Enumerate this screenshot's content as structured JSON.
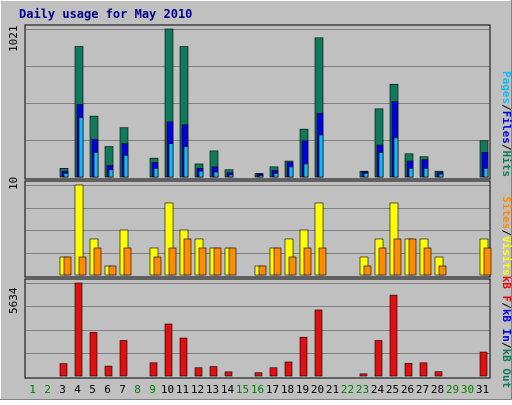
{
  "title": "Daily usage for May 2010",
  "colors": {
    "frame_bg": "#c0c0c0",
    "plot_bg": "#c0c0c0",
    "grid": "#808080",
    "title": "#00008b",
    "hits": "#117a5a",
    "files": "#0000e0",
    "pages": "#1ab8f0",
    "visits": "#ffff00",
    "sites": "#ff8c00",
    "kb_in": "#e01010",
    "weekday": "#000000",
    "weekend": "#008000"
  },
  "axes": {
    "top_max_label": "1021",
    "mid_max_label": "10",
    "bot_max_label": "5634"
  },
  "legend": {
    "top": [
      "Pages",
      "/",
      "Files",
      "/",
      "Hits"
    ],
    "mid": [
      "Sites",
      "/",
      "Visits"
    ],
    "bot": [
      "kB F",
      "/",
      "kB In",
      "/",
      "kB Out"
    ]
  },
  "chart_data": [
    {
      "type": "bar",
      "title": "Daily usage for May 2010",
      "panel": "top",
      "ylim": [
        0,
        1021
      ],
      "categories": [
        "1",
        "2",
        "3",
        "4",
        "5",
        "6",
        "7",
        "8",
        "9",
        "10",
        "11",
        "12",
        "13",
        "14",
        "15",
        "16",
        "17",
        "18",
        "19",
        "20",
        "21",
        "22",
        "23",
        "24",
        "25",
        "26",
        "27",
        "28",
        "29",
        "30",
        "31"
      ],
      "weekend_days": [
        "1",
        "2",
        "8",
        "9",
        "15",
        "16",
        "22",
        "23",
        "29",
        "30"
      ],
      "series": [
        {
          "name": "Hits",
          "values": [
            0,
            0,
            60,
            900,
            420,
            210,
            340,
            0,
            130,
            1021,
            900,
            90,
            180,
            50,
            0,
            25,
            70,
            110,
            330,
            960,
            0,
            0,
            40,
            470,
            640,
            160,
            140,
            40,
            0,
            0,
            250
          ]
        },
        {
          "name": "Files",
          "values": [
            0,
            0,
            40,
            500,
            260,
            80,
            230,
            0,
            100,
            380,
            360,
            60,
            70,
            30,
            0,
            20,
            45,
            100,
            250,
            440,
            0,
            0,
            35,
            220,
            520,
            110,
            120,
            30,
            0,
            0,
            170
          ]
        },
        {
          "name": "Pages",
          "values": [
            0,
            0,
            25,
            410,
            170,
            50,
            150,
            0,
            60,
            230,
            210,
            40,
            35,
            15,
            0,
            10,
            25,
            70,
            90,
            290,
            0,
            0,
            25,
            170,
            270,
            60,
            60,
            20,
            0,
            0,
            60
          ]
        }
      ]
    },
    {
      "type": "bar",
      "panel": "middle",
      "ylim": [
        0,
        10
      ],
      "categories": [
        "1",
        "2",
        "3",
        "4",
        "5",
        "6",
        "7",
        "8",
        "9",
        "10",
        "11",
        "12",
        "13",
        "14",
        "15",
        "16",
        "17",
        "18",
        "19",
        "20",
        "21",
        "22",
        "23",
        "24",
        "25",
        "26",
        "27",
        "28",
        "29",
        "30",
        "31"
      ],
      "series": [
        {
          "name": "Visits",
          "values": [
            0,
            0,
            2,
            10,
            4,
            1,
            5,
            0,
            3,
            8,
            5,
            4,
            3,
            3,
            0,
            1,
            3,
            4,
            5,
            8,
            0,
            0,
            2,
            4,
            8,
            4,
            4,
            2,
            0,
            0,
            4
          ]
        },
        {
          "name": "Sites",
          "values": [
            0,
            0,
            2,
            2,
            3,
            1,
            3,
            0,
            2,
            3,
            4,
            3,
            3,
            3,
            0,
            1,
            3,
            2,
            3,
            3,
            0,
            0,
            1,
            3,
            4,
            4,
            3,
            1,
            0,
            0,
            3
          ]
        }
      ]
    },
    {
      "type": "bar",
      "panel": "bottom",
      "ylim": [
        0,
        5634
      ],
      "categories": [
        "1",
        "2",
        "3",
        "4",
        "5",
        "6",
        "7",
        "8",
        "9",
        "10",
        "11",
        "12",
        "13",
        "14",
        "15",
        "16",
        "17",
        "18",
        "19",
        "20",
        "21",
        "22",
        "23",
        "24",
        "25",
        "26",
        "27",
        "28",
        "29",
        "30",
        "31"
      ],
      "series": [
        {
          "name": "kB In",
          "values": [
            0,
            0,
            750,
            5634,
            2650,
            600,
            2150,
            0,
            800,
            3150,
            2300,
            500,
            570,
            250,
            0,
            200,
            500,
            850,
            2350,
            4000,
            0,
            0,
            130,
            2150,
            4900,
            770,
            800,
            260,
            0,
            0,
            1450
          ]
        }
      ]
    }
  ]
}
